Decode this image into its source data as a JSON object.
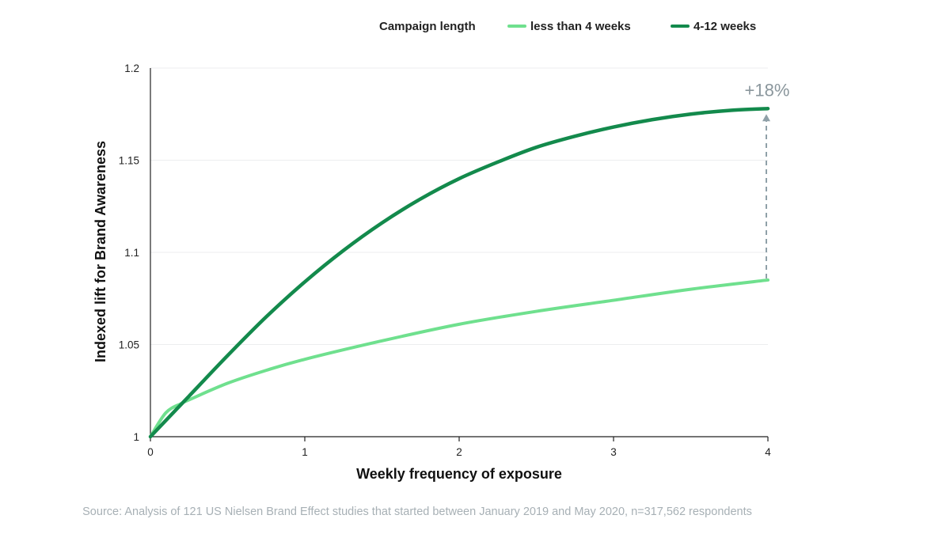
{
  "legend": {
    "title": "Campaign length"
  },
  "source_note": "Source: Analysis of 121 US Nielsen Brand Effect studies that started between January 2019 and May 2020, n=317,562 respondents",
  "colors": {
    "light_green": "#6fe08e",
    "dark_green": "#138a4c",
    "annotation": "#8fa0a8"
  },
  "chart_data": {
    "type": "line",
    "title": "",
    "xlabel": "Weekly frequency of exposure",
    "ylabel": "Indexed lift for Brand Awareness",
    "xlim": [
      0,
      4
    ],
    "ylim": [
      1,
      1.2
    ],
    "x_ticks": [
      "0",
      "1",
      "2",
      "3",
      "4"
    ],
    "y_ticks": [
      "1",
      "1.05",
      "1.1",
      "1.15",
      "1.2"
    ],
    "grid": true,
    "legend_position": "top-right",
    "series": [
      {
        "name": "less than 4 weeks",
        "color": "#6fe08e",
        "x": [
          0,
          0.1,
          0.2,
          0.25,
          0.5,
          0.75,
          1,
          1.5,
          2,
          2.5,
          3,
          3.5,
          4
        ],
        "y": [
          1.0,
          1.013,
          1.018,
          1.02,
          1.029,
          1.036,
          1.042,
          1.052,
          1.061,
          1.068,
          1.074,
          1.08,
          1.085
        ]
      },
      {
        "name": "4-12 weeks",
        "color": "#138a4c",
        "x": [
          0,
          0.25,
          0.5,
          0.75,
          1,
          1.25,
          1.5,
          1.75,
          2,
          2.25,
          2.5,
          2.75,
          3,
          3.25,
          3.5,
          3.75,
          4
        ],
        "y": [
          1.0,
          1.022,
          1.044,
          1.065,
          1.084,
          1.101,
          1.116,
          1.129,
          1.14,
          1.149,
          1.157,
          1.163,
          1.168,
          1.172,
          1.175,
          1.177,
          1.178
        ]
      }
    ],
    "annotations": [
      {
        "text": "+18%",
        "x": 4,
        "from_y": 1.085,
        "to_y": 1.178
      }
    ]
  }
}
